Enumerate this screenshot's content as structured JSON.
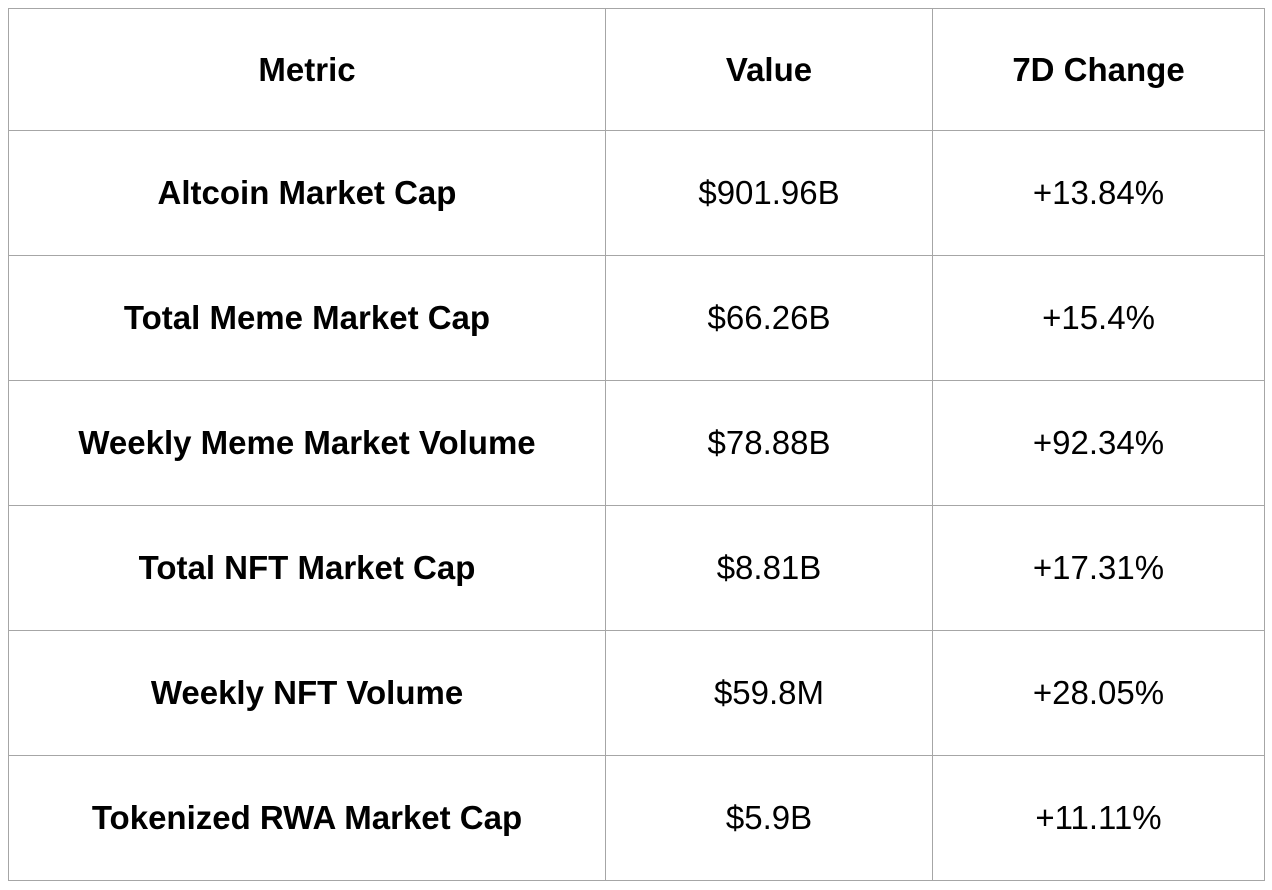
{
  "table": {
    "columns": [
      "Metric",
      "Value",
      "7D Change"
    ],
    "rows": [
      {
        "metric": "Altcoin Market Cap",
        "value": "$901.96B",
        "change": "+13.84%"
      },
      {
        "metric": "Total Meme Market Cap",
        "value": "$66.26B",
        "change": "+15.4%"
      },
      {
        "metric": "Weekly Meme Market Volume",
        "value": "$78.88B",
        "change": "+92.34%"
      },
      {
        "metric": "Total NFT Market Cap",
        "value": "$8.81B",
        "change": "+17.31%"
      },
      {
        "metric": "Weekly NFT Volume",
        "value": "$59.8M",
        "change": "+28.05%"
      },
      {
        "metric": "Tokenized RWA Market Cap",
        "value": "$5.9B",
        "change": "+11.11%"
      }
    ]
  },
  "chart_data": {
    "type": "table",
    "title": "",
    "columns": [
      "Metric",
      "Value",
      "7D Change"
    ],
    "rows": [
      [
        "Altcoin Market Cap",
        "$901.96B",
        "+13.84%"
      ],
      [
        "Total Meme Market Cap",
        "$66.26B",
        "+15.4%"
      ],
      [
        "Weekly Meme Market Volume",
        "$78.88B",
        "+92.34%"
      ],
      [
        "Total NFT Market Cap",
        "$8.81B",
        "+17.31%"
      ],
      [
        "Weekly NFT Volume",
        "$59.8M",
        "+28.05%"
      ],
      [
        "Tokenized RWA Market Cap",
        "$5.9B",
        "+11.11%"
      ]
    ],
    "values_numeric_billions": [
      901.96,
      66.26,
      78.88,
      8.81,
      0.0598,
      5.9
    ],
    "change_percent": [
      13.84,
      15.4,
      92.34,
      17.31,
      28.05,
      11.11
    ]
  },
  "colors": {
    "border": "#a6a6a6",
    "text": "#000000",
    "background": "#ffffff"
  }
}
